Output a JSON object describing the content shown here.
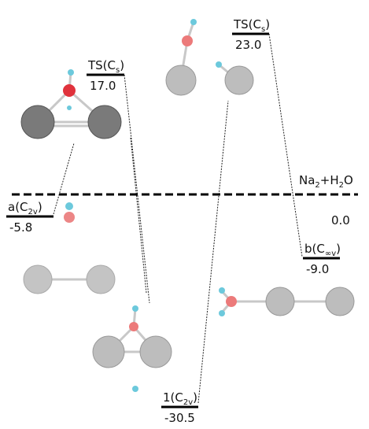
{
  "reference": {
    "parts": [
      {
        "text": "Na"
      },
      {
        "sub": "2"
      },
      {
        "text": "+H"
      },
      {
        "sub": "2"
      },
      {
        "text": "O"
      }
    ],
    "energy": "0.0"
  },
  "levels": [
    {
      "parts": [
        {
          "text": "a(C"
        },
        {
          "sub": "2v"
        },
        {
          "text": ")"
        }
      ],
      "energy": "-5.8"
    },
    {
      "parts": [
        {
          "text": "TS(C"
        },
        {
          "sub": "s"
        },
        {
          "text": ")"
        }
      ],
      "energy": "17.0"
    },
    {
      "parts": [
        {
          "text": "1(C"
        },
        {
          "sub": "2v"
        },
        {
          "text": ")"
        }
      ],
      "energy": "-30.5"
    },
    {
      "parts": [
        {
          "text": "TS(C"
        },
        {
          "sub": "s"
        },
        {
          "text": ")"
        }
      ],
      "energy": "23.0"
    },
    {
      "parts": [
        {
          "text": "b(C"
        },
        {
          "sub": "∞v"
        },
        {
          "text": ")"
        }
      ],
      "energy": "-9.0"
    }
  ]
}
